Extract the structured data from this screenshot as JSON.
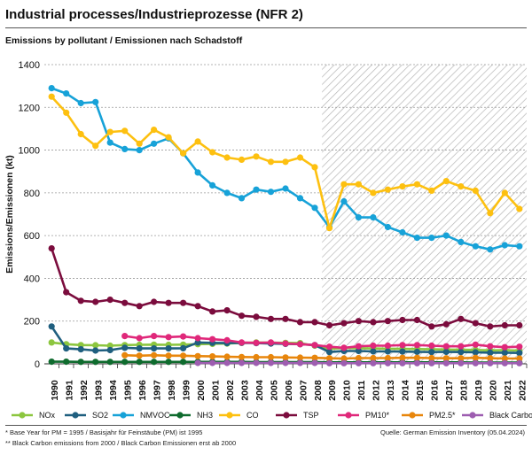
{
  "header": {
    "title": "Industrial processes/Industrieprozesse (NFR 2)",
    "subtitle": "Emissions by pollutant / Emissionen nach Schadstoff"
  },
  "footer": {
    "note1": "* Base Year for PM = 1995 / Basisjahr für Feinstäube (PM) ist 1995",
    "note2": "** Black Carbon emissions  from 2000 / Black Carbon Emissionen erst ab 2000",
    "source": "Quelle: German Emission Inventory (05.04.2024)"
  },
  "chart_data": {
    "type": "line",
    "ylabel": "Emissions/Emissionen (kt)",
    "ylim": [
      0,
      1400
    ],
    "yticks": [
      "0",
      "200",
      "400",
      "600",
      "800",
      "1000",
      "1200",
      "1400"
    ],
    "xlabels": [
      "1990",
      "1991",
      "1992",
      "1993",
      "1994",
      "1995",
      "1996",
      "1997",
      "1998",
      "1999",
      "2000",
      "2001",
      "2002",
      "2003",
      "2004",
      "2005",
      "2006",
      "2007",
      "2008",
      "2009",
      "2010",
      "2011",
      "2012",
      "2013",
      "2014",
      "2015",
      "2016",
      "2017",
      "2018",
      "2019",
      "2020",
      "2021",
      "2022"
    ],
    "hatched_years": [
      "2009",
      "2010",
      "2011",
      "2012",
      "2013",
      "2014",
      "2015",
      "2016",
      "2017",
      "2018",
      "2019",
      "2020",
      "2021",
      "2022"
    ],
    "series": [
      {
        "name": "NOx",
        "color": "#8cc63f",
        "start_year": 1990,
        "values": [
          100,
          92,
          88,
          87,
          85,
          88,
          89,
          90,
          89,
          90,
          92,
          93,
          95,
          98,
          100,
          99,
          98,
          97,
          85,
          70,
          74,
          73,
          72,
          71,
          70,
          69,
          68,
          67,
          66,
          65,
          63,
          64,
          62
        ]
      },
      {
        "name": "SO2",
        "color": "#1f5f7f",
        "start_year": 1990,
        "values": [
          175,
          72,
          68,
          62,
          64,
          75,
          72,
          72,
          72,
          73,
          100,
          98,
          97,
          98,
          97,
          95,
          93,
          92,
          88,
          55,
          60,
          60,
          58,
          58,
          57,
          56,
          55,
          56,
          55,
          54,
          52,
          52,
          51
        ]
      },
      {
        "name": "NMVOC",
        "color": "#17a2d8",
        "start_year": 1990,
        "values": [
          1290,
          1265,
          1220,
          1225,
          1035,
          1005,
          1000,
          1030,
          1055,
          985,
          895,
          835,
          800,
          775,
          815,
          805,
          820,
          775,
          730,
          640,
          760,
          685,
          685,
          640,
          615,
          590,
          590,
          600,
          570,
          550,
          535,
          555,
          550
        ]
      },
      {
        "name": "NH3",
        "color": "#0f6b2e",
        "start_year": 1990,
        "values": [
          10,
          10,
          9,
          9,
          9,
          9,
          9,
          9,
          9,
          9,
          9,
          9,
          9,
          9,
          8,
          8,
          8,
          8,
          8,
          7,
          7,
          7,
          7,
          7,
          7,
          7,
          7,
          7,
          7,
          6,
          6,
          6,
          6
        ]
      },
      {
        "name": "CO",
        "color": "#fdc010",
        "start_year": 1990,
        "values": [
          1250,
          1175,
          1075,
          1020,
          1085,
          1090,
          1030,
          1095,
          1060,
          985,
          1040,
          990,
          965,
          955,
          970,
          945,
          945,
          965,
          920,
          635,
          840,
          840,
          800,
          815,
          830,
          840,
          810,
          855,
          830,
          810,
          705,
          800,
          725
        ]
      },
      {
        "name": "TSP",
        "color": "#7b0c3d",
        "start_year": 1990,
        "values": [
          540,
          335,
          295,
          290,
          300,
          285,
          270,
          290,
          285,
          285,
          270,
          245,
          250,
          225,
          220,
          210,
          210,
          195,
          195,
          180,
          190,
          200,
          195,
          200,
          205,
          205,
          175,
          185,
          210,
          190,
          175,
          180,
          180
        ]
      },
      {
        "name": "PM10*",
        "color": "#e0287a",
        "start_year": 1995,
        "values": [
          130,
          120,
          130,
          125,
          128,
          120,
          115,
          110,
          100,
          98,
          100,
          95,
          92,
          88,
          80,
          75,
          82,
          85,
          85,
          88,
          88,
          85,
          82,
          82,
          90,
          82,
          78,
          80
        ]
      },
      {
        "name": "PM2.5*",
        "color": "#e8860c",
        "start_year": 1995,
        "values": [
          40,
          38,
          40,
          38,
          38,
          36,
          35,
          33,
          32,
          31,
          31,
          30,
          29,
          28,
          26,
          25,
          27,
          27,
          27,
          28,
          28,
          27,
          26,
          26,
          28,
          26,
          25,
          25
        ]
      },
      {
        "name": "Black Carbon**",
        "color": "#9d5db0",
        "start_year": 2000,
        "values": [
          4,
          4,
          4,
          4,
          4,
          4,
          4,
          4,
          4,
          3,
          3,
          3,
          3,
          3,
          3,
          3,
          3,
          3,
          3,
          3,
          3,
          3,
          3
        ]
      }
    ],
    "grid": true,
    "legend": "bottom"
  }
}
